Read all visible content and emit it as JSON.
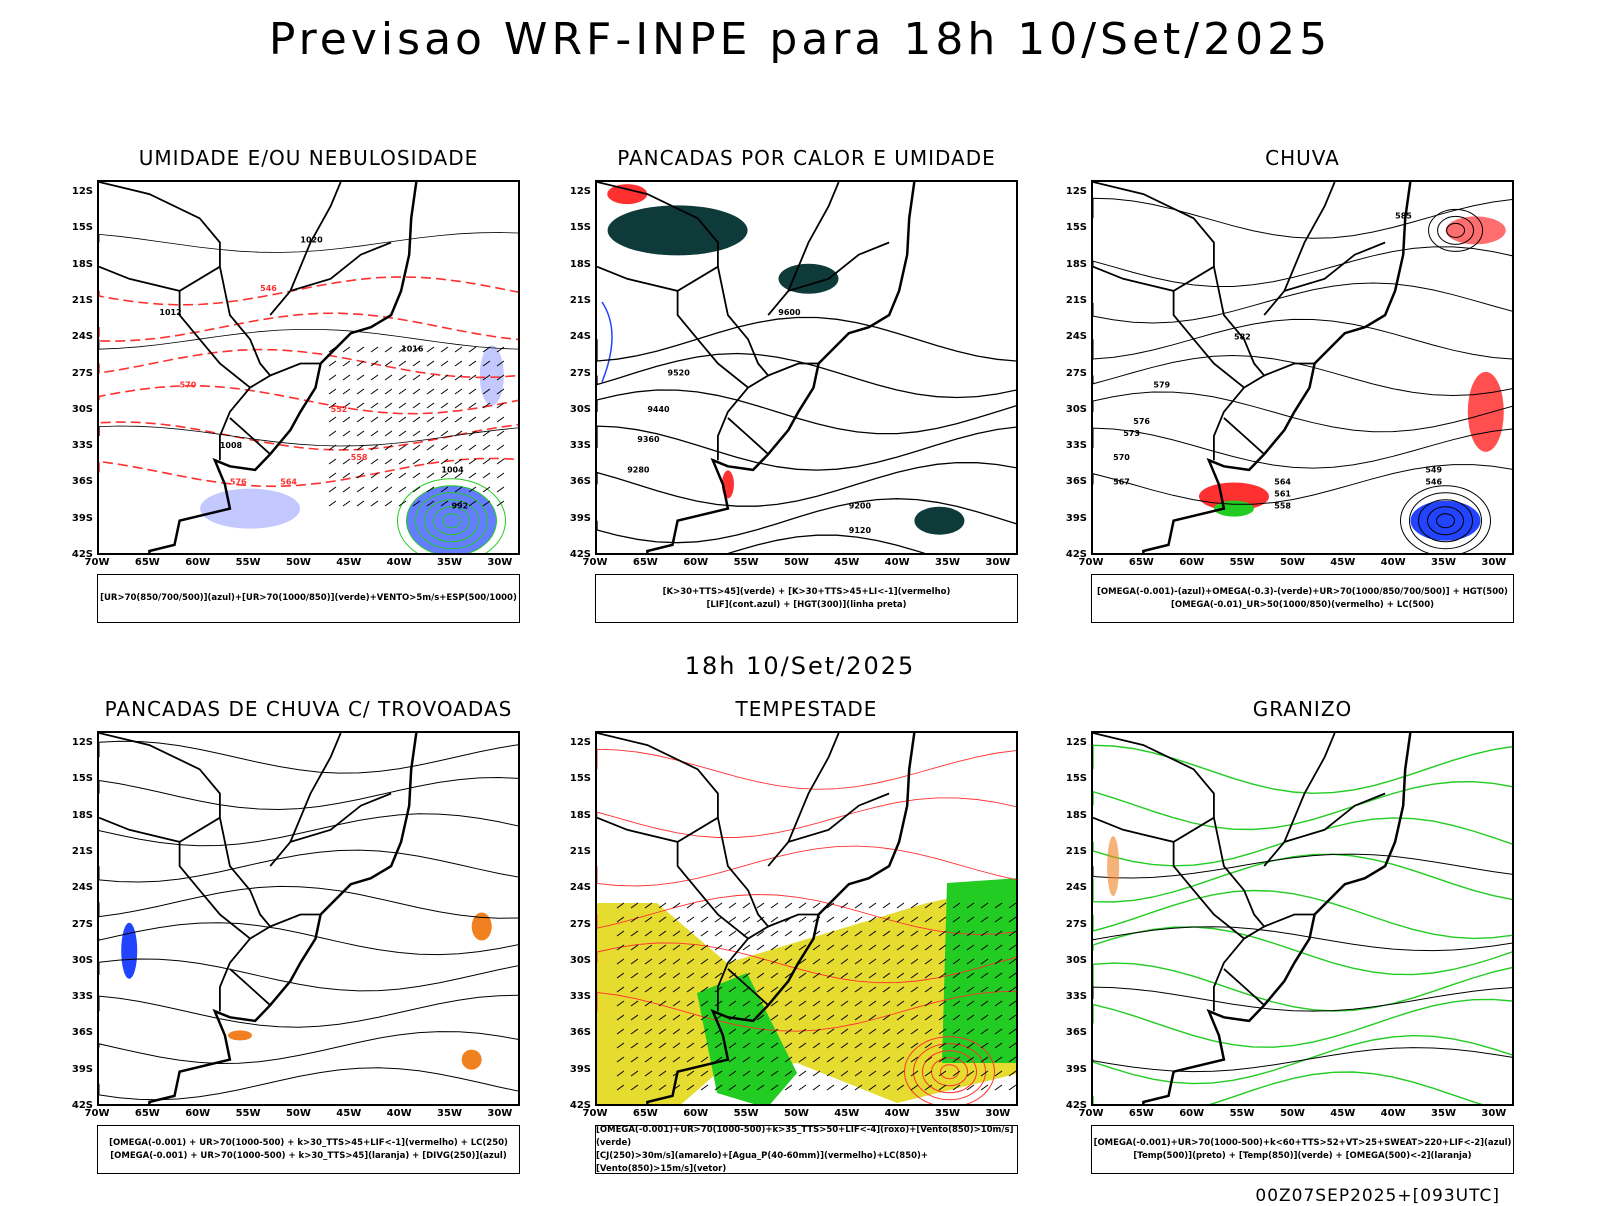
{
  "title": "Previsao WRF-INPE  para 18h 10/Set/2025",
  "mid_label": "18h 10/Set/2025",
  "footer": "00Z07SEP2025+[093UTC]",
  "lat_ticks": [
    "12S",
    "15S",
    "18S",
    "21S",
    "24S",
    "27S",
    "30S",
    "33S",
    "36S",
    "39S",
    "42S"
  ],
  "lon_ticks": [
    "70W",
    "65W",
    "60W",
    "55W",
    "50W",
    "45W",
    "40W",
    "35W",
    "30W"
  ],
  "colors": {
    "red": "#ff3030",
    "green": "#22cc22",
    "blue": "#2244ff",
    "lightblue": "#aab0ff",
    "teal": "#0f3a3a",
    "yellow": "#e6dc30",
    "orange": "#f08020"
  },
  "panels": [
    {
      "title": "UMIDADE E/OU NEBULOSIDADE",
      "legend": [
        "[UR>70(850/700/500)](azul)+[UR>70(1000/850)](verde)+VENTO>5m/s+ESP(500/1000)"
      ]
    },
    {
      "title": "PANCADAS POR CALOR E UMIDADE",
      "legend": [
        "[K>30+TTS>45](verde)  +  [K>30+TTS>45+LI<-1](vermelho)",
        "[LIF](cont.azul)  +  [HGT(300)](linha preta)"
      ]
    },
    {
      "title": "CHUVA",
      "legend": [
        "[OMEGA(-0.001)-(azul)+OMEGA(-0.3)-(verde)+UR>70(1000/850/700/500)]  +  HGT(500)",
        "[OMEGA(-0.01)_UR>50(1000/850)(vermelho)  +  LC(500)"
      ]
    },
    {
      "title": "PANCADAS DE CHUVA C/ TROVOADAS",
      "legend": [
        "[OMEGA(-0.001)  +  UR>70(1000-500)  +  k>30_TTS>45+LIF<-1](vermelho)  +  LC(250)",
        "[OMEGA(-0.001)  +  UR>70(1000-500)  +  k>30_TTS>45](laranja)  +  [DIVG(250)](azul)"
      ]
    },
    {
      "title": "TEMPESTADE",
      "legend": [
        "[OMEGA(-0.001)+UR>70(1000-500)+k>35_TTS>50+LIF<-4](roxo)+[Vento(850)>10m/s](verde)",
        "[CJ(250)>30m/s](amarelo)+[Agua_P(40-60mm)](vermelho)+LC(850)+[Vento(850)>15m/s](vetor)"
      ]
    },
    {
      "title": "GRANIZO",
      "legend": [
        "[OMEGA(-0.001)+UR>70(1000-500)+k<60+TTS>52+VT>25+SWEAT>220+LIF<-2](azul)",
        "[Temp(500)](preto)  +  [Temp(850)](verde)  +  [OMEGA(500)<-2](laranja)"
      ]
    }
  ],
  "contour_labels": {
    "p1": [
      "1008",
      "1012",
      "1016",
      "1020",
      "570",
      "576",
      "564",
      "558",
      "552",
      "546",
      "1004",
      "992"
    ],
    "p2": [
      "9600",
      "9520",
      "9440",
      "9360",
      "9280",
      "9200",
      "9120"
    ],
    "p3": [
      "585",
      "582",
      "579",
      "576",
      "573",
      "570",
      "567",
      "564",
      "561",
      "558",
      "549",
      "546"
    ]
  }
}
